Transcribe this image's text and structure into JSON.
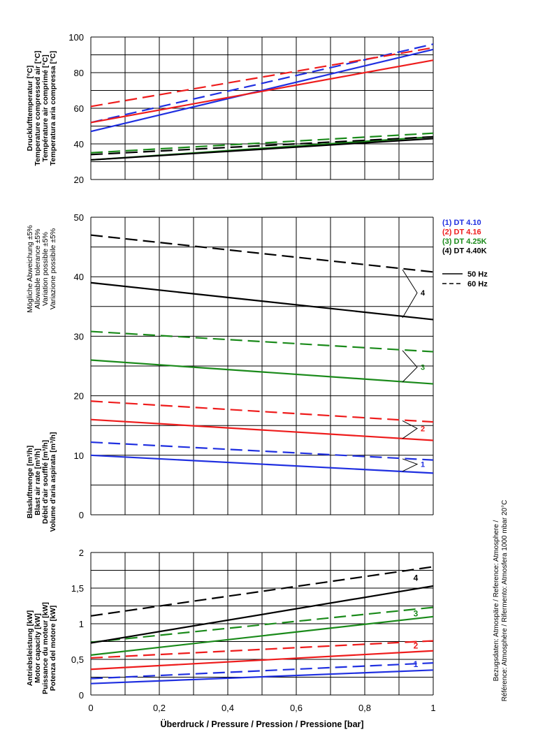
{
  "colors": {
    "blue": "#1f2fe0",
    "red": "#ee1c1c",
    "green": "#1a8a1a",
    "black": "#000000",
    "grid": "#000000"
  },
  "chart_data": [
    {
      "type": "line",
      "ylabel": [
        "Drucklufttemperatur [°C]",
        "Temperature compressed air [°C]",
        "Température air comprimé [°C]",
        "Temperatura aria compressa [°C]"
      ],
      "ylim": [
        20,
        100
      ],
      "yticks": [
        20,
        40,
        60,
        80,
        100
      ],
      "x": [
        0,
        1
      ],
      "series": [
        {
          "color": "blue",
          "style": "solid",
          "values": [
            47,
            93
          ]
        },
        {
          "color": "blue",
          "style": "dashed",
          "values": [
            52,
            96
          ]
        },
        {
          "color": "red",
          "style": "solid",
          "values": [
            52,
            87
          ]
        },
        {
          "color": "red",
          "style": "dashed",
          "values": [
            61,
            94
          ]
        },
        {
          "color": "green",
          "style": "solid",
          "values": [
            31,
            44
          ]
        },
        {
          "color": "green",
          "style": "dashed",
          "values": [
            35,
            46
          ]
        },
        {
          "color": "black",
          "style": "solid",
          "values": [
            31,
            43
          ]
        },
        {
          "color": "black",
          "style": "dashed",
          "values": [
            34,
            44
          ]
        }
      ]
    },
    {
      "type": "line",
      "ylabel": [
        "Blasluftmenge [m³/h]",
        "Blast air rate [m³/h]",
        "Débit d'air soufflé [m³/h]",
        "Volume d'aria aspirata [m³/h]"
      ],
      "tolerance_label": [
        "Mögliche Abweichung ±5%",
        "Allowable tolerance ±5%",
        "Variation possible ±5%",
        "Variazione possibile ±5%"
      ],
      "ylim": [
        0,
        50
      ],
      "yticks": [
        0,
        10,
        20,
        30,
        40,
        50
      ],
      "x": [
        0,
        1
      ],
      "series": [
        {
          "color": "blue",
          "style": "solid",
          "values": [
            10.0,
            7.0
          ]
        },
        {
          "color": "blue",
          "style": "dashed",
          "values": [
            12.2,
            9.2
          ]
        },
        {
          "color": "red",
          "style": "solid",
          "values": [
            16.0,
            12.5
          ]
        },
        {
          "color": "red",
          "style": "dashed",
          "values": [
            19.1,
            15.6
          ]
        },
        {
          "color": "green",
          "style": "solid",
          "values": [
            26.0,
            22.0
          ]
        },
        {
          "color": "green",
          "style": "dashed",
          "values": [
            30.8,
            27.4
          ]
        },
        {
          "color": "black",
          "style": "solid",
          "values": [
            39.0,
            32.8
          ]
        },
        {
          "color": "black",
          "style": "dashed",
          "values": [
            47.0,
            40.8
          ]
        }
      ],
      "callouts": [
        {
          "label": "1",
          "color": "blue",
          "solid_y": 7.3,
          "dashed_y": 9.4,
          "tip_y": 8.5
        },
        {
          "label": "2",
          "color": "red",
          "solid_y": 12.8,
          "dashed_y": 15.8,
          "tip_y": 14.5
        },
        {
          "label": "3",
          "color": "green",
          "solid_y": 22.3,
          "dashed_y": 27.6,
          "tip_y": 24.8
        },
        {
          "label": "4",
          "color": "black",
          "solid_y": 33.1,
          "dashed_y": 41.2,
          "tip_y": 37.3
        }
      ],
      "legend": {
        "models": [
          {
            "text": "(1) DT 4.10",
            "color": "blue"
          },
          {
            "text": "(2) DT 4.16",
            "color": "red"
          },
          {
            "text": "(3) DT 4.25K",
            "color": "green"
          },
          {
            "text": "(4) DT 4.40K",
            "color": "black"
          }
        ],
        "freq": [
          {
            "text": "50 Hz",
            "style": "solid"
          },
          {
            "text": "60 Hz",
            "style": "dashed"
          }
        ]
      }
    },
    {
      "type": "line",
      "ylabel": [
        "Antriebsleistung [kW]",
        "Motor capacity [kW]",
        "Puissance du moteur [kW]",
        "Potenza del motore [kW]"
      ],
      "ylim": [
        0,
        2
      ],
      "yticks": [
        0,
        0.5,
        1,
        1.5,
        2
      ],
      "ytick_labels": [
        "0",
        "0,5",
        "1",
        "1,5",
        "2"
      ],
      "x": [
        0,
        1
      ],
      "xticks": [
        0,
        0.2,
        0.4,
        0.6,
        0.8,
        1
      ],
      "xtick_labels": [
        "0",
        "0,2",
        "0,4",
        "0,6",
        "0,8",
        "1"
      ],
      "xlabel": "Überdruck / Pressure / Pression / Pressione     [bar]",
      "series": [
        {
          "color": "blue",
          "style": "solid",
          "values": [
            0.16,
            0.35
          ]
        },
        {
          "color": "blue",
          "style": "dashed",
          "values": [
            0.23,
            0.45
          ]
        },
        {
          "color": "red",
          "style": "solid",
          "values": [
            0.36,
            0.62
          ]
        },
        {
          "color": "red",
          "style": "dashed",
          "values": [
            0.52,
            0.76
          ]
        },
        {
          "color": "green",
          "style": "solid",
          "values": [
            0.56,
            1.1
          ]
        },
        {
          "color": "green",
          "style": "dashed",
          "values": [
            0.74,
            1.23
          ]
        },
        {
          "color": "black",
          "style": "solid",
          "values": [
            0.73,
            1.53
          ]
        },
        {
          "color": "black",
          "style": "dashed",
          "values": [
            1.11,
            1.8
          ]
        }
      ],
      "curve_labels": [
        {
          "label": "1",
          "color": "blue",
          "y": 0.43
        },
        {
          "label": "2",
          "color": "red",
          "y": 0.69
        },
        {
          "label": "3",
          "color": "green",
          "y": 1.14
        },
        {
          "label": "4",
          "color": "black",
          "y": 1.64
        }
      ]
    }
  ],
  "reference_note": [
    "Bezugsdaten: Atmospäre / Reference: Atmosphere /",
    "Référence: Atmosphère / Rifermento: Atmosfera   1000 mbar 20°C"
  ]
}
